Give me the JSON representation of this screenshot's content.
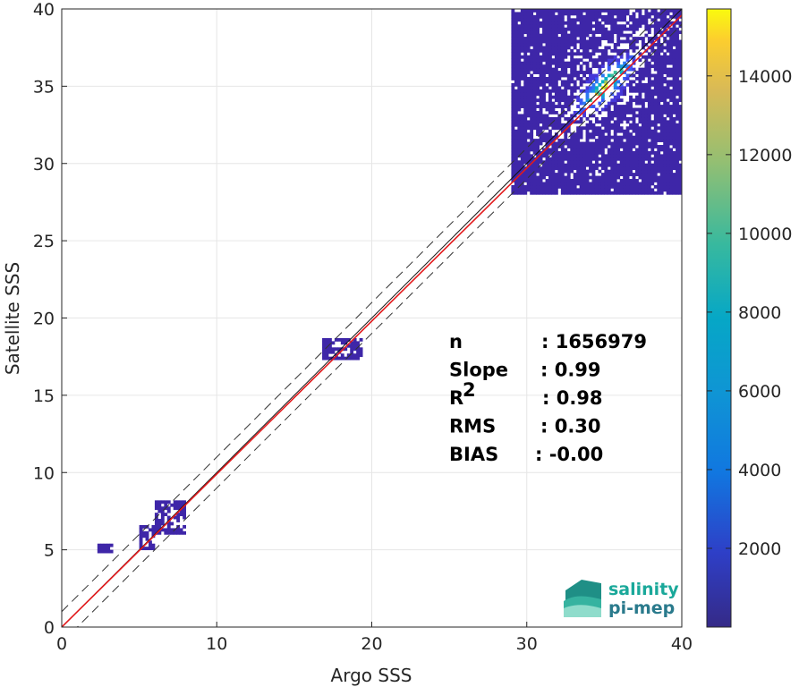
{
  "chart_data": {
    "type": "heatmap",
    "title": "",
    "xlabel": "Argo SSS",
    "ylabel": "Satellite SSS",
    "xlim": [
      0,
      40
    ],
    "ylim": [
      0,
      40
    ],
    "xticks": [
      0,
      10,
      20,
      30,
      40
    ],
    "yticks": [
      0,
      5,
      10,
      15,
      20,
      25,
      30,
      35,
      40
    ],
    "grid": true,
    "colormap": "parula",
    "colorbar": {
      "range": [
        0,
        15700
      ],
      "ticks": [
        2000,
        4000,
        6000,
        8000,
        10000,
        12000,
        14000
      ],
      "position": "right"
    },
    "density_clusters": [
      {
        "x_range": [
          29,
          40
        ],
        "y_range": [
          28,
          40
        ],
        "peak_x": 35,
        "peak_y": 35,
        "peak_count": 15000
      },
      {
        "x_range": [
          16.8,
          19.2
        ],
        "y_range": [
          17.3,
          18.6
        ],
        "peak_x": 18.3,
        "peak_y": 18,
        "peak_count": 2500
      },
      {
        "x_range": [
          6,
          8
        ],
        "y_range": [
          6,
          8.2
        ],
        "peak_x": 7,
        "peak_y": 7,
        "peak_count": 1500
      },
      {
        "x_range": [
          5,
          6
        ],
        "y_range": [
          5,
          6.5
        ],
        "peak_x": 5.5,
        "peak_y": 5.5,
        "peak_count": 500
      },
      {
        "x_range": [
          2.3,
          3.2
        ],
        "y_range": [
          4.8,
          5.2
        ],
        "peak_x": 2.8,
        "peak_y": 5,
        "peak_count": 200
      }
    ],
    "reference_lines": [
      {
        "kind": "identity",
        "slope": 1,
        "intercept": 0,
        "color": "#111111",
        "style": "solid"
      },
      {
        "kind": "regression",
        "slope": 0.99,
        "intercept": 0,
        "color": "#e31a1c",
        "style": "solid"
      },
      {
        "kind": "upper-bound",
        "slope": 1,
        "intercept": 1,
        "color": "#333333",
        "style": "dashed"
      },
      {
        "kind": "lower-bound",
        "slope": 1,
        "intercept": -1,
        "color": "#333333",
        "style": "dashed"
      }
    ],
    "stats": [
      {
        "label": "n",
        "value": ": 1656979"
      },
      {
        "label": "Slope",
        "value": ": 0.99"
      },
      {
        "label": "R",
        "label_sup": "2",
        "value": ": 0.98"
      },
      {
        "label": "RMS",
        "value": ": 0.30"
      },
      {
        "label": "BIAS",
        "value": ": -0.00"
      }
    ]
  },
  "logo": {
    "line1": "salinity",
    "line2": "pi-mep",
    "color1": "#1aa89a",
    "color2": "#2a7a8c"
  }
}
